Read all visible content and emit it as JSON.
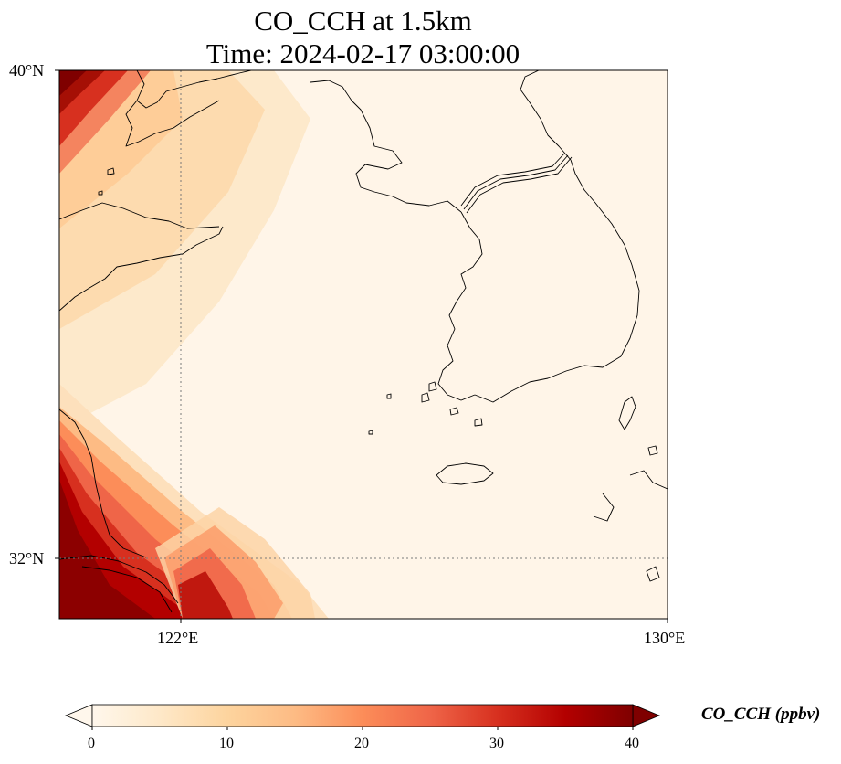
{
  "title": {
    "line1": "CO_CCH at 1.5km",
    "line2": "Time: 2024-02-17 03:00:00"
  },
  "map": {
    "lat_ticks": [
      "40°N",
      "32°N"
    ],
    "lon_ticks": [
      "122°E",
      "130°E"
    ],
    "extent": {
      "lon_min": 120,
      "lon_max": 130,
      "lat_min": 31,
      "lat_max": 40
    },
    "gridlines": "dotted"
  },
  "colorbar": {
    "label": "CO_CCH (ppbv)",
    "ticks": [
      "0",
      "10",
      "20",
      "30",
      "40"
    ],
    "vmin": 0,
    "vmax": 40,
    "colormap": "OrRd",
    "extend": "both",
    "colors": [
      "#fff7ec",
      "#fee8c8",
      "#fdd49e",
      "#fdbb84",
      "#fc8d59",
      "#ef6548",
      "#d7301f",
      "#b30000",
      "#7f0000"
    ]
  },
  "field": {
    "background_ppbv": 2,
    "high_zones": [
      "northwest corner",
      "southwest corner (Shanghai / Yangtze mouth)"
    ],
    "moderate_zone": "Shandong Peninsula and Yellow Sea northwest"
  }
}
